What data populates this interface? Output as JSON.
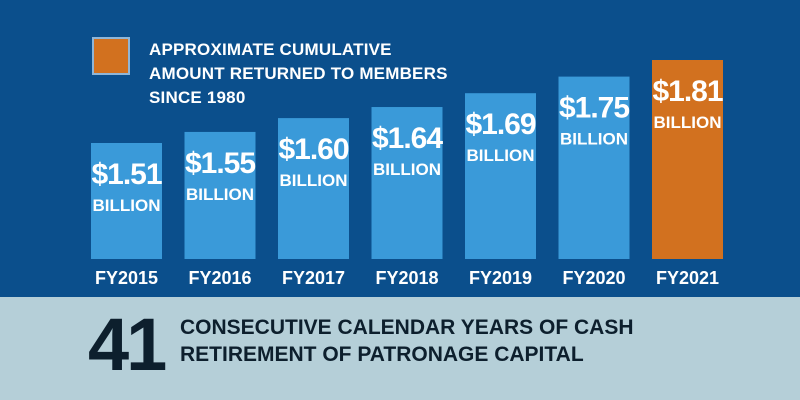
{
  "legend": {
    "text": "APPROXIMATE CUMULATIVE AMOUNT RETURNED TO MEMBERS SINCE 1980",
    "swatch_color": "#d2711f"
  },
  "chart_data": {
    "type": "bar",
    "categories": [
      "FY2015",
      "FY2016",
      "FY2017",
      "FY2018",
      "FY2019",
      "FY2020",
      "FY2021"
    ],
    "values": [
      1.51,
      1.55,
      1.6,
      1.64,
      1.69,
      1.75,
      1.81
    ],
    "value_labels": [
      "$1.51",
      "$1.55",
      "$1.60",
      "$1.64",
      "$1.69",
      "$1.75",
      "$1.81"
    ],
    "unit_label": "BILLION",
    "colors": {
      "default": "#3a9ad9",
      "highlight": "#d2711f",
      "background": "#0b4f8c"
    },
    "highlight_index": 6
  },
  "footer": {
    "number": "41",
    "text": "CONSECUTIVE CALENDAR YEARS OF CASH RETIREMENT OF PATRONAGE CAPITAL"
  }
}
